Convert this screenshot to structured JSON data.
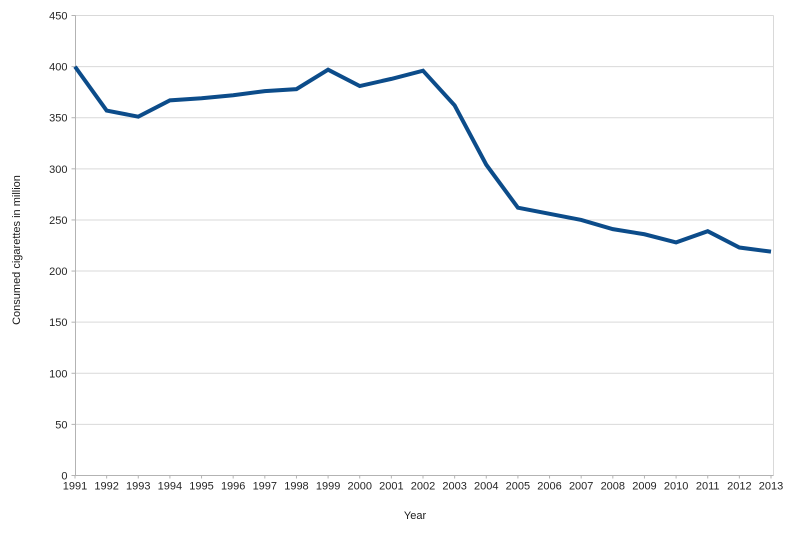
{
  "chart_data": {
    "type": "line",
    "title": "",
    "xlabel": "Year",
    "ylabel": "Consumed cigarettes in million",
    "categories": [
      "1991",
      "1992",
      "1993",
      "1994",
      "1995",
      "1996",
      "1997",
      "1998",
      "1999",
      "2000",
      "2001",
      "2002",
      "2003",
      "2004",
      "2005",
      "2006",
      "2007",
      "2008",
      "2009",
      "2010",
      "2011",
      "2012",
      "2013"
    ],
    "values": [
      400,
      357,
      351,
      367,
      369,
      372,
      376,
      378,
      397,
      381,
      388,
      396,
      362,
      304,
      262,
      256,
      250,
      241,
      236,
      228,
      239,
      223,
      219
    ],
    "ylim": [
      0,
      450
    ],
    "ytick_interval": 50,
    "grid": "horizontal",
    "legend": "none",
    "colors": {
      "series_line": "#0c4c8a",
      "gridline": "#d9d9d9",
      "axis_line": "#b3b3b3",
      "tick_text": "#262626",
      "background": "#ffffff"
    }
  }
}
